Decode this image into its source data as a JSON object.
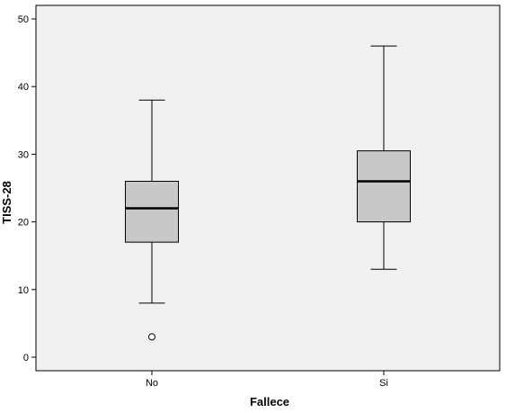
{
  "chart_data": {
    "type": "boxplot",
    "xlabel": "Fallece",
    "ylabel": "TISS-28",
    "ylim": [
      -2,
      52
    ],
    "yticks": [
      0,
      10,
      20,
      30,
      40,
      50
    ],
    "categories": [
      "No",
      "Si"
    ],
    "boxes": [
      {
        "category": "No",
        "whisker_low": 8,
        "q1": 17,
        "median": 22,
        "q3": 26,
        "whisker_high": 38,
        "outliers": [
          3
        ]
      },
      {
        "category": "Si",
        "whisker_low": 13,
        "q1": 20,
        "median": 26,
        "q3": 30.5,
        "whisker_high": 46,
        "outliers": []
      }
    ],
    "background_color": "#f0f0f0",
    "box_fill": "#c8c8c8",
    "grid": false
  }
}
